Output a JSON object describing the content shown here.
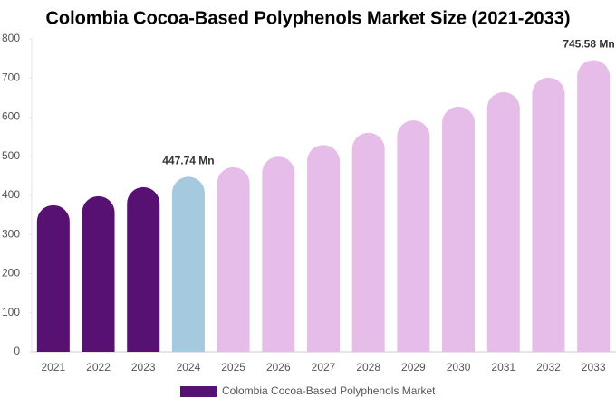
{
  "chart_data": {
    "type": "bar",
    "title": "Colombia Cocoa-Based Polyphenols Market Size (2021-2033)",
    "categories": [
      "2021",
      "2022",
      "2023",
      "2024",
      "2025",
      "2026",
      "2027",
      "2028",
      "2029",
      "2030",
      "2031",
      "2032",
      "2033"
    ],
    "series": [
      {
        "name": "Colombia Cocoa-Based Polyphenols Market",
        "color": "#561172",
        "values": [
          375,
          398,
          421,
          447.74,
          472,
          499,
          529,
          560,
          592,
          627,
          664,
          701,
          745.58
        ],
        "value_labels": [
          null,
          null,
          null,
          "447.74 Mn",
          null,
          null,
          null,
          null,
          null,
          null,
          null,
          null,
          "745.58 Mn"
        ],
        "colors": [
          "#561172",
          "#561172",
          "#561172",
          "#a5c9de",
          "#e6bde9",
          "#e6bde9",
          "#e6bde9",
          "#e6bde9",
          "#e6bde9",
          "#e6bde9",
          "#e6bde9",
          "#e6bde9",
          "#e6bde9"
        ]
      }
    ],
    "ylim": [
      0,
      800
    ],
    "yticks": [
      0,
      100,
      200,
      300,
      400,
      500,
      600,
      700,
      800
    ],
    "grid": false
  }
}
